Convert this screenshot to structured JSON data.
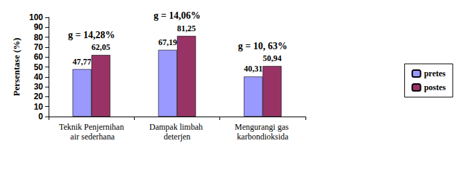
{
  "chart_data": {
    "type": "bar",
    "y_label": "Persentase (%)",
    "categories": [
      "Teknik Penjernihan air sederhana",
      "Dampak limbah deterjen",
      "Mengurangi gas karbondioksida"
    ],
    "series": [
      {
        "name": "pretes",
        "color": "#9999ff",
        "values": [
          47.77,
          67.19,
          40.31
        ],
        "value_labels": [
          "47,77",
          "67,19",
          "40,31"
        ]
      },
      {
        "name": "postes",
        "color": "#993366",
        "values": [
          62.05,
          81.25,
          50.94
        ],
        "value_labels": [
          "62,05",
          "81,25",
          "50,94"
        ]
      }
    ],
    "annotations": [
      "g = 14,28%",
      "g = 14,06%",
      "g = 10, 63%"
    ],
    "ylim": [
      0,
      100
    ],
    "yticks": [
      0,
      10,
      20,
      30,
      40,
      50,
      60,
      70,
      80,
      90,
      100
    ],
    "grid": false,
    "data_labels": true,
    "legend": "right"
  }
}
